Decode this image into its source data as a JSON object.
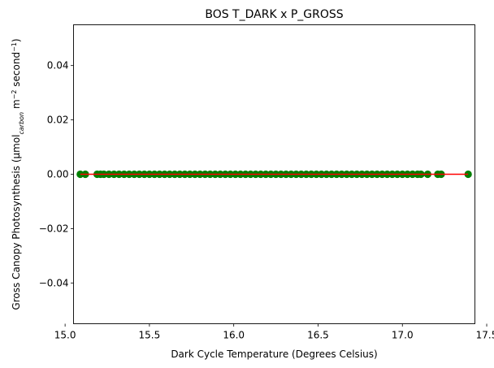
{
  "chart_data": {
    "type": "scatter",
    "title": "BOS T_DARK x P_GROSS",
    "xlabel": "Dark Cycle Temperature (Degrees Celsius)",
    "ylabel": {
      "prefix": "Gross Canopy Photosynthesis (µmol",
      "subscript": "carbon",
      "middle": " m",
      "sup1": "−2",
      "middle2": " second",
      "sup2": "−1",
      "suffix": ")"
    },
    "xlim": [
      15.05,
      17.43
    ],
    "ylim": [
      -0.055,
      0.055
    ],
    "x_ticks": [
      {
        "value": 15.0,
        "label": "15.0"
      },
      {
        "value": 15.5,
        "label": "15.5"
      },
      {
        "value": 16.0,
        "label": "16.0"
      },
      {
        "value": 16.5,
        "label": "16.5"
      },
      {
        "value": 17.0,
        "label": "17.0"
      },
      {
        "value": 17.5,
        "label": "17.5"
      }
    ],
    "y_ticks": [
      {
        "value": 0.04,
        "label": "0.04"
      },
      {
        "value": 0.02,
        "label": "0.02"
      },
      {
        "value": 0.0,
        "label": "0.00"
      },
      {
        "value": -0.02,
        "label": "−0.02"
      },
      {
        "value": -0.04,
        "label": "−0.04"
      }
    ],
    "grid": false,
    "series": [
      {
        "kind": "scatter",
        "color": "#007f00",
        "x": [
          15.09,
          15.12,
          15.19,
          15.21,
          15.23,
          15.26,
          15.29,
          15.32,
          15.35,
          15.38,
          15.41,
          15.44,
          15.47,
          15.5,
          15.53,
          15.56,
          15.59,
          15.62,
          15.65,
          15.68,
          15.71,
          15.74,
          15.77,
          15.8,
          15.83,
          15.86,
          15.89,
          15.92,
          15.95,
          15.98,
          16.01,
          16.04,
          16.07,
          16.1,
          16.13,
          16.16,
          16.19,
          16.22,
          16.25,
          16.28,
          16.31,
          16.34,
          16.37,
          16.4,
          16.43,
          16.46,
          16.49,
          16.52,
          16.55,
          16.58,
          16.61,
          16.64,
          16.67,
          16.7,
          16.73,
          16.76,
          16.79,
          16.82,
          16.85,
          16.88,
          16.91,
          16.94,
          16.97,
          17.0,
          17.03,
          17.06,
          17.09,
          17.11,
          17.15,
          17.21,
          17.23,
          17.39
        ],
        "y": [
          0,
          0,
          0,
          0,
          0,
          0,
          0,
          0,
          0,
          0,
          0,
          0,
          0,
          0,
          0,
          0,
          0,
          0,
          0,
          0,
          0,
          0,
          0,
          0,
          0,
          0,
          0,
          0,
          0,
          0,
          0,
          0,
          0,
          0,
          0,
          0,
          0,
          0,
          0,
          0,
          0,
          0,
          0,
          0,
          0,
          0,
          0,
          0,
          0,
          0,
          0,
          0,
          0,
          0,
          0,
          0,
          0,
          0,
          0,
          0,
          0,
          0,
          0,
          0,
          0,
          0,
          0,
          0,
          0,
          0,
          0,
          0
        ]
      },
      {
        "kind": "line",
        "color": "#ff0000",
        "x": [
          15.09,
          17.39
        ],
        "y": [
          0,
          0
        ]
      }
    ]
  }
}
